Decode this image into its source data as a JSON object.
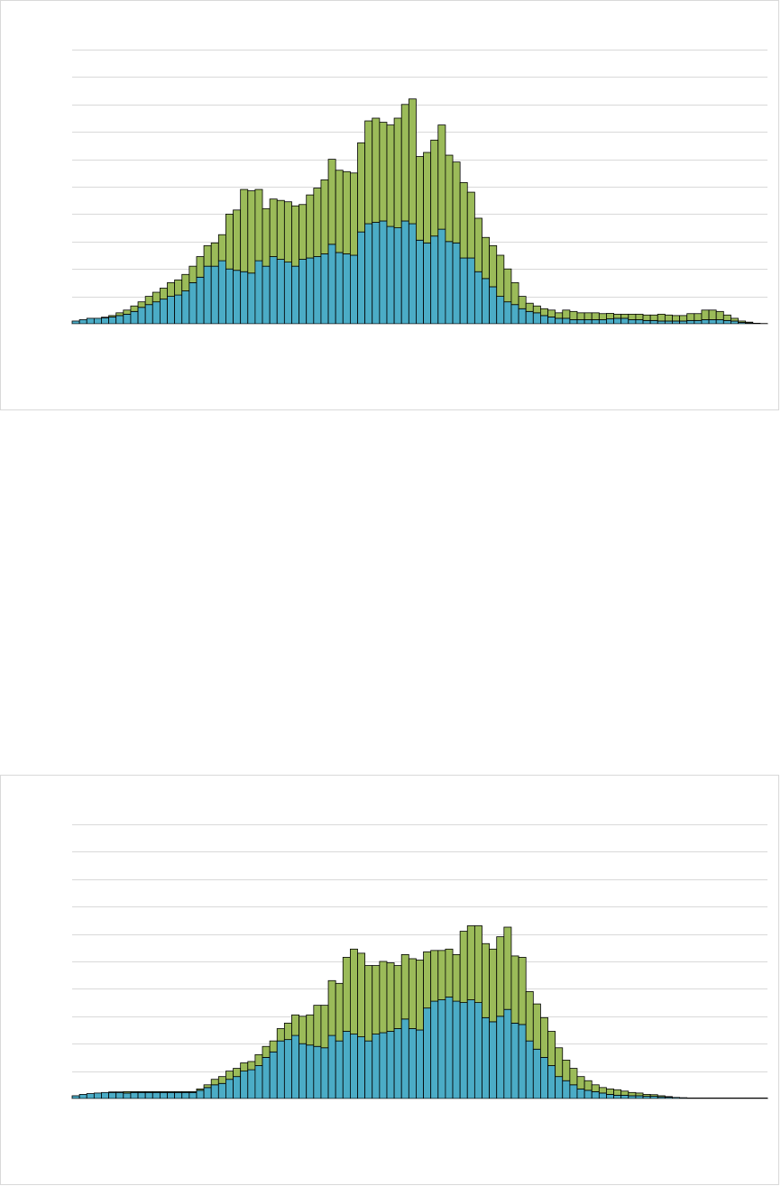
{
  "chart_data": [
    {
      "type": "bar",
      "stacked": true,
      "title": "",
      "xlabel": "",
      "ylabel": "",
      "grid": true,
      "legend": "none",
      "ylim": [
        0,
        10
      ],
      "colors": {
        "base": "#4bacc6",
        "top": "#9bbb59",
        "outline": "#000000",
        "grid": "#d9d9d9"
      },
      "series": [
        {
          "values": [
            0.1,
            0.15,
            0.2,
            0.2,
            0.22,
            0.25,
            0.3,
            0.35,
            0.45,
            0.6,
            0.7,
            0.8,
            0.9,
            1.0,
            1.05,
            1.2,
            1.5,
            1.7,
            2.1,
            2.1,
            2.3,
            2.0,
            1.95,
            1.9,
            1.85,
            2.3,
            2.1,
            2.45,
            2.35,
            2.25,
            2.1,
            2.35,
            2.4,
            2.45,
            2.55,
            2.9,
            2.6,
            2.55,
            2.5,
            3.35,
            3.65,
            3.7,
            3.75,
            3.55,
            3.5,
            3.75,
            3.65,
            3.05,
            2.95,
            3.2,
            3.45,
            3.0,
            2.95,
            2.4,
            2.4,
            1.9,
            1.65,
            1.35,
            1.0,
            0.8,
            0.7,
            0.55,
            0.45,
            0.4,
            0.3,
            0.25,
            0.2,
            0.2,
            0.15,
            0.15,
            0.15,
            0.15,
            0.15,
            0.18,
            0.2,
            0.2,
            0.15,
            0.15,
            0.12,
            0.12,
            0.1,
            0.1,
            0.1,
            0.1,
            0.12,
            0.12,
            0.15,
            0.15,
            0.15,
            0.12,
            0.1,
            0.05,
            0.03,
            0.02,
            0.01
          ]
        },
        {
          "values": [
            0.0,
            0.0,
            0.0,
            0.0,
            0.02,
            0.05,
            0.1,
            0.15,
            0.2,
            0.2,
            0.3,
            0.35,
            0.4,
            0.5,
            0.55,
            0.6,
            0.6,
            0.75,
            0.75,
            0.85,
            0.95,
            2.0,
            2.2,
            3.0,
            3.0,
            2.6,
            2.1,
            2.1,
            2.15,
            2.2,
            2.2,
            2.0,
            2.3,
            2.5,
            2.7,
            3.1,
            3.0,
            3.0,
            3.0,
            3.25,
            3.75,
            3.8,
            3.6,
            3.7,
            4.0,
            4.25,
            4.55,
            3.05,
            3.3,
            3.5,
            3.8,
            3.15,
            2.95,
            2.75,
            2.4,
            1.95,
            1.5,
            1.5,
            1.5,
            1.2,
            0.8,
            0.45,
            0.3,
            0.25,
            0.25,
            0.25,
            0.2,
            0.3,
            0.3,
            0.25,
            0.25,
            0.25,
            0.22,
            0.2,
            0.15,
            0.15,
            0.2,
            0.2,
            0.2,
            0.2,
            0.25,
            0.22,
            0.2,
            0.2,
            0.25,
            0.25,
            0.35,
            0.35,
            0.3,
            0.2,
            0.1,
            0.05,
            0.03,
            0.0,
            0.0
          ]
        }
      ]
    },
    {
      "type": "bar",
      "stacked": true,
      "title": "",
      "xlabel": "",
      "ylabel": "",
      "grid": true,
      "legend": "none",
      "ylim": [
        0,
        10
      ],
      "colors": {
        "base": "#4bacc6",
        "top": "#9bbb59",
        "outline": "#000000",
        "grid": "#d9d9d9"
      },
      "series": [
        {
          "values": [
            0.1,
            0.15,
            0.18,
            0.2,
            0.22,
            0.22,
            0.22,
            0.2,
            0.22,
            0.22,
            0.22,
            0.22,
            0.22,
            0.22,
            0.22,
            0.22,
            0.22,
            0.3,
            0.4,
            0.5,
            0.55,
            0.7,
            0.8,
            1.0,
            1.05,
            1.2,
            1.5,
            1.7,
            2.1,
            2.15,
            2.3,
            2.0,
            1.95,
            1.9,
            1.85,
            2.3,
            2.1,
            2.45,
            2.35,
            2.25,
            2.1,
            2.35,
            2.4,
            2.45,
            2.55,
            2.9,
            2.55,
            2.5,
            3.3,
            3.55,
            3.6,
            3.7,
            3.55,
            3.5,
            3.6,
            3.5,
            2.95,
            2.8,
            3.0,
            3.25,
            2.75,
            2.7,
            2.1,
            1.8,
            1.5,
            1.2,
            0.8,
            0.65,
            0.5,
            0.35,
            0.3,
            0.25,
            0.2,
            0.15,
            0.12,
            0.12,
            0.1,
            0.1,
            0.08,
            0.08,
            0.06,
            0.05,
            0.04,
            0.03,
            0.02,
            0.02,
            0.02,
            0.02,
            0.02,
            0.02,
            0.02,
            0.02,
            0.02,
            0.02,
            0.02
          ]
        },
        {
          "values": [
            0.0,
            0.0,
            0.0,
            0.0,
            0.0,
            0.02,
            0.02,
            0.05,
            0.03,
            0.03,
            0.03,
            0.03,
            0.03,
            0.03,
            0.03,
            0.03,
            0.03,
            0.05,
            0.1,
            0.2,
            0.25,
            0.3,
            0.3,
            0.3,
            0.3,
            0.4,
            0.4,
            0.4,
            0.45,
            0.6,
            0.75,
            1.0,
            1.1,
            1.5,
            1.55,
            2.0,
            2.1,
            2.7,
            3.1,
            3.05,
            2.75,
            2.5,
            2.6,
            2.5,
            2.3,
            2.35,
            2.55,
            2.55,
            2.05,
            1.85,
            1.8,
            1.75,
            1.7,
            2.6,
            2.7,
            2.8,
            2.7,
            2.65,
            2.9,
            3.0,
            2.45,
            2.45,
            1.8,
            1.65,
            1.45,
            1.25,
            1.05,
            0.75,
            0.6,
            0.45,
            0.35,
            0.25,
            0.2,
            0.2,
            0.2,
            0.15,
            0.12,
            0.1,
            0.07,
            0.06,
            0.04,
            0.02,
            0.0,
            0.0,
            0.0,
            0.0,
            0.0,
            0.0,
            0.0,
            0.0,
            0.0,
            0.0,
            0.0,
            0.0,
            0.0
          ]
        }
      ]
    }
  ]
}
